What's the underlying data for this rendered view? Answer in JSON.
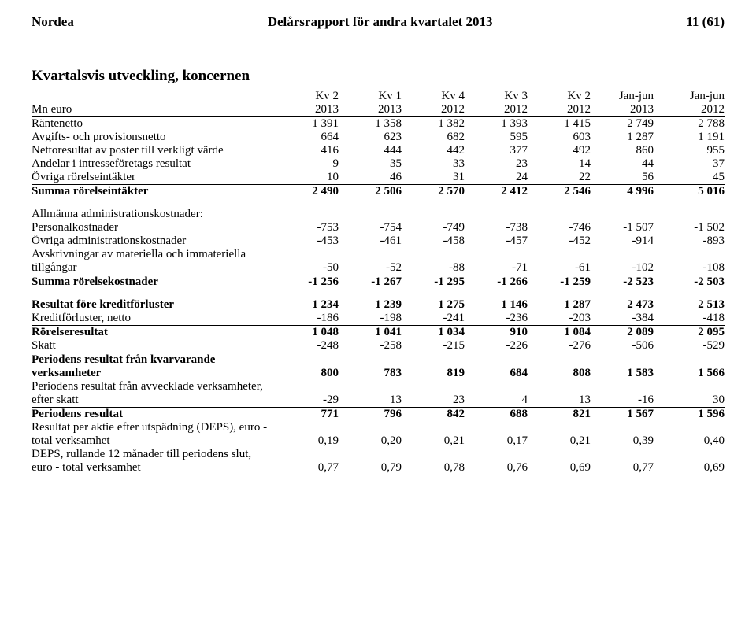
{
  "header": {
    "left": "Nordea",
    "center": "Delårsrapport för andra kvartalet 2013",
    "right": "11 (61)"
  },
  "title": "Kvartalsvis utveckling, koncernen",
  "columns_line1": [
    "",
    "Kv 2",
    "Kv 1",
    "Kv 4",
    "Kv 3",
    "Kv 2",
    "Jan-jun",
    "Jan-jun"
  ],
  "columns_line2_label": "Mn euro",
  "columns_line2": [
    "2013",
    "2013",
    "2012",
    "2012",
    "2012",
    "2013",
    "2012"
  ],
  "rows": [
    {
      "label": "Räntenetto",
      "vals": [
        "1 391",
        "1 358",
        "1 382",
        "1 393",
        "1 415",
        "2 749",
        "2 788"
      ]
    },
    {
      "label": "Avgifts- och provisionsnetto",
      "vals": [
        "664",
        "623",
        "682",
        "595",
        "603",
        "1 287",
        "1 191"
      ]
    },
    {
      "label": "Nettoresultat av poster till verkligt värde",
      "vals": [
        "416",
        "444",
        "442",
        "377",
        "492",
        "860",
        "955"
      ]
    },
    {
      "label": "Andelar i intresseföretags resultat",
      "vals": [
        "9",
        "35",
        "33",
        "23",
        "14",
        "44",
        "37"
      ]
    },
    {
      "label": "Övriga rörelseintäkter",
      "vals": [
        "10",
        "46",
        "31",
        "24",
        "22",
        "56",
        "45"
      ],
      "underline": true
    },
    {
      "label": "Summa rörelseintäkter",
      "vals": [
        "2 490",
        "2 506",
        "2 570",
        "2 412",
        "2 546",
        "4 996",
        "5 016"
      ],
      "bold": true,
      "topborder": true
    }
  ],
  "section2_header": "Allmänna administrationskostnader:",
  "rows2": [
    {
      "label": "  Personalkostnader",
      "vals": [
        "-753",
        "-754",
        "-749",
        "-738",
        "-746",
        "-1 507",
        "-1 502"
      ]
    },
    {
      "label": "  Övriga administrationskostnader",
      "vals": [
        "-453",
        "-461",
        "-458",
        "-457",
        "-452",
        "-914",
        "-893"
      ]
    }
  ],
  "rows2b_label1": "Avskrivningar av materiella och immateriella",
  "rows2b_label2": "tillgångar",
  "rows2b_vals": [
    "-50",
    "-52",
    "-88",
    "-71",
    "-61",
    "-102",
    "-108"
  ],
  "rows2c": {
    "label": "Summa rörelsekostnader",
    "vals": [
      "-1 256",
      "-1 267",
      "-1 295",
      "-1 266",
      "-1 259",
      "-2 523",
      "-2 503"
    ],
    "bold": true
  },
  "rows3": [
    {
      "label": "Resultat före kreditförluster",
      "vals": [
        "1 234",
        "1 239",
        "1 275",
        "1 146",
        "1 287",
        "2 473",
        "2 513"
      ],
      "bold": true
    },
    {
      "label": "Kreditförluster, netto",
      "vals": [
        "-186",
        "-198",
        "-241",
        "-236",
        "-203",
        "-384",
        "-418"
      ],
      "underline": true
    },
    {
      "label": "Rörelseresultat",
      "vals": [
        "1 048",
        "1 041",
        "1 034",
        "910",
        "1 084",
        "2 089",
        "2 095"
      ],
      "bold": true,
      "topborder": true
    },
    {
      "label": "Skatt",
      "vals": [
        "-248",
        "-258",
        "-215",
        "-226",
        "-276",
        "-506",
        "-529"
      ],
      "underline": true
    }
  ],
  "rows4_label1": "Periodens resultat från kvarvarande",
  "rows4_label2": "verksamheter",
  "rows4_vals": [
    "800",
    "783",
    "819",
    "684",
    "808",
    "1 583",
    "1 566"
  ],
  "rows5_label1": "Periodens resultat från avvecklade verksamheter,",
  "rows5_label2": "efter skatt",
  "rows5_vals": [
    "-29",
    "13",
    "23",
    "4",
    "13",
    "-16",
    "30"
  ],
  "rows6": {
    "label": "Periodens resultat",
    "vals": [
      "771",
      "796",
      "842",
      "688",
      "821",
      "1 567",
      "1 596"
    ],
    "bold": true
  },
  "rows7_label1": "Resultat per aktie efter utspädning (DEPS), euro -",
  "rows7_label2": "total verksamhet",
  "rows7_vals": [
    "0,19",
    "0,20",
    "0,21",
    "0,17",
    "0,21",
    "0,39",
    "0,40"
  ],
  "rows8_label1": "DEPS, rullande 12 månader till periodens slut,",
  "rows8_label2": "euro - total verksamhet",
  "rows8_vals": [
    "0,77",
    "0,79",
    "0,78",
    "0,76",
    "0,69",
    "0,77",
    "0,69"
  ]
}
